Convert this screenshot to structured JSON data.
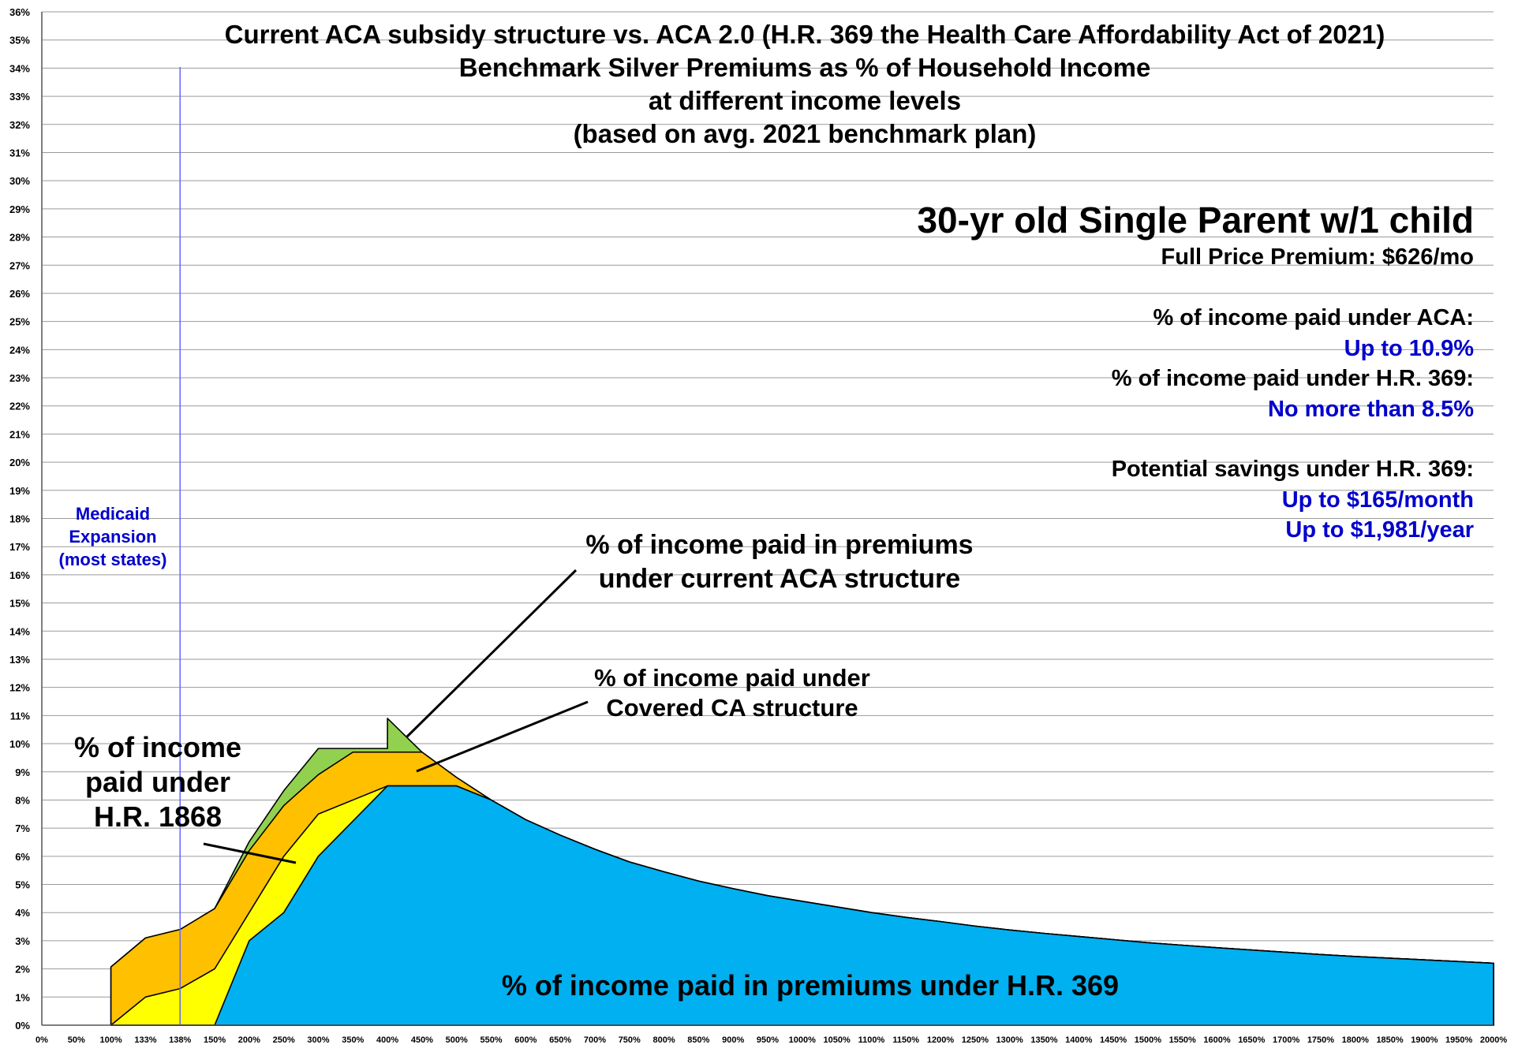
{
  "chart_data": {
    "type": "area",
    "title_lines": [
      "Current ACA subsidy structure vs. ACA 2.0 (H.R. 369 the Health Care Affordability Act of 2021)",
      "Benchmark Silver Premiums as % of Household Income",
      "at different income levels",
      "(based on avg. 2021 benchmark plan)"
    ],
    "y_ticks": [
      "0%",
      "1%",
      "2%",
      "3%",
      "4%",
      "5%",
      "6%",
      "7%",
      "8%",
      "9%",
      "10%",
      "11%",
      "12%",
      "13%",
      "14%",
      "15%",
      "16%",
      "17%",
      "18%",
      "19%",
      "20%",
      "21%",
      "22%",
      "23%",
      "24%",
      "25%",
      "26%",
      "27%",
      "28%",
      "29%",
      "30%",
      "31%",
      "32%",
      "33%",
      "34%",
      "35%",
      "36%"
    ],
    "ylim": [
      0,
      36
    ],
    "x_ticks": [
      "0%",
      "50%",
      "100%",
      "133%",
      "138%",
      "150%",
      "200%",
      "250%",
      "300%",
      "350%",
      "400%",
      "450%",
      "500%",
      "550%",
      "600%",
      "650%",
      "700%",
      "750%",
      "800%",
      "850%",
      "900%",
      "950%",
      "1000%",
      "1050%",
      "1100%",
      "1150%",
      "1200%",
      "1250%",
      "1300%",
      "1350%",
      "1400%",
      "1450%",
      "1500%",
      "1550%",
      "1600%",
      "1650%",
      "1700%",
      "1750%",
      "1800%",
      "1850%",
      "1900%",
      "1950%",
      "2000%"
    ],
    "grid": true,
    "medicaid_line_at": "138%",
    "series": [
      {
        "key": "aca",
        "color": "#92D050",
        "points": [
          [
            "100%",
            2.07
          ],
          [
            "133%",
            3.1
          ],
          [
            "138%",
            3.4
          ],
          [
            "150%",
            4.14
          ],
          [
            "200%",
            6.52
          ],
          [
            "250%",
            8.33
          ],
          [
            "300%",
            9.83
          ],
          [
            "350%",
            9.83
          ],
          [
            "400%",
            9.83
          ],
          [
            "400%",
            10.9
          ],
          [
            "450%",
            9.7
          ],
          [
            "500%",
            8.8
          ],
          [
            "550%",
            8.0
          ],
          [
            "600%",
            7.3
          ],
          [
            "650%",
            6.75
          ],
          [
            "700%",
            6.25
          ],
          [
            "750%",
            5.8
          ],
          [
            "800%",
            5.45
          ],
          [
            "850%",
            5.12
          ],
          [
            "900%",
            4.85
          ],
          [
            "950%",
            4.6
          ],
          [
            "1000%",
            4.4
          ],
          [
            "1050%",
            4.2
          ],
          [
            "1100%",
            4.0
          ],
          [
            "1150%",
            3.83
          ],
          [
            "1200%",
            3.68
          ],
          [
            "1250%",
            3.52
          ],
          [
            "1300%",
            3.38
          ],
          [
            "1350%",
            3.26
          ],
          [
            "1400%",
            3.15
          ],
          [
            "1450%",
            3.04
          ],
          [
            "1500%",
            2.93
          ],
          [
            "1550%",
            2.84
          ],
          [
            "1600%",
            2.75
          ],
          [
            "1650%",
            2.67
          ],
          [
            "1700%",
            2.59
          ],
          [
            "1750%",
            2.51
          ],
          [
            "1800%",
            2.44
          ],
          [
            "1850%",
            2.38
          ],
          [
            "1900%",
            2.32
          ],
          [
            "1950%",
            2.26
          ],
          [
            "2000%",
            2.2
          ]
        ]
      },
      {
        "key": "covered_ca",
        "color": "#FFC000",
        "points": [
          [
            "100%",
            2.07
          ],
          [
            "133%",
            3.1
          ],
          [
            "138%",
            3.4
          ],
          [
            "150%",
            4.14
          ],
          [
            "200%",
            6.2
          ],
          [
            "250%",
            7.8
          ],
          [
            "300%",
            8.9
          ],
          [
            "350%",
            9.7
          ],
          [
            "400%",
            9.7
          ],
          [
            "450%",
            9.7
          ],
          [
            "500%",
            8.8
          ],
          [
            "550%",
            8.0
          ],
          [
            "600%",
            7.3
          ],
          [
            "650%",
            6.75
          ],
          [
            "700%",
            6.25
          ],
          [
            "750%",
            5.8
          ],
          [
            "800%",
            5.45
          ],
          [
            "850%",
            5.12
          ],
          [
            "900%",
            4.85
          ],
          [
            "950%",
            4.6
          ],
          [
            "1000%",
            4.4
          ],
          [
            "1050%",
            4.2
          ],
          [
            "1100%",
            4.0
          ],
          [
            "1150%",
            3.83
          ],
          [
            "1200%",
            3.68
          ],
          [
            "1250%",
            3.52
          ],
          [
            "1300%",
            3.38
          ],
          [
            "1350%",
            3.26
          ],
          [
            "1400%",
            3.15
          ],
          [
            "1450%",
            3.04
          ],
          [
            "1500%",
            2.93
          ],
          [
            "1550%",
            2.84
          ],
          [
            "1600%",
            2.75
          ],
          [
            "1650%",
            2.67
          ],
          [
            "1700%",
            2.59
          ],
          [
            "1750%",
            2.51
          ],
          [
            "1800%",
            2.44
          ],
          [
            "1850%",
            2.38
          ],
          [
            "1900%",
            2.32
          ],
          [
            "1950%",
            2.26
          ],
          [
            "2000%",
            2.2
          ]
        ]
      },
      {
        "key": "hr1868",
        "color": "#FFFF00",
        "points": [
          [
            "100%",
            0
          ],
          [
            "133%",
            1.0
          ],
          [
            "138%",
            1.3
          ],
          [
            "150%",
            2.0
          ],
          [
            "200%",
            4.0
          ],
          [
            "250%",
            6.0
          ],
          [
            "300%",
            7.5
          ],
          [
            "350%",
            8.0
          ],
          [
            "400%",
            8.5
          ],
          [
            "450%",
            8.5
          ],
          [
            "500%",
            8.5
          ],
          [
            "550%",
            8.0
          ],
          [
            "600%",
            7.3
          ],
          [
            "650%",
            6.75
          ],
          [
            "700%",
            6.25
          ],
          [
            "750%",
            5.8
          ],
          [
            "800%",
            5.45
          ],
          [
            "850%",
            5.12
          ],
          [
            "900%",
            4.85
          ],
          [
            "950%",
            4.6
          ],
          [
            "1000%",
            4.4
          ],
          [
            "1050%",
            4.2
          ],
          [
            "1100%",
            4.0
          ],
          [
            "1150%",
            3.83
          ],
          [
            "1200%",
            3.68
          ],
          [
            "1250%",
            3.52
          ],
          [
            "1300%",
            3.38
          ],
          [
            "1350%",
            3.26
          ],
          [
            "1400%",
            3.15
          ],
          [
            "1450%",
            3.04
          ],
          [
            "1500%",
            2.93
          ],
          [
            "1550%",
            2.84
          ],
          [
            "1600%",
            2.75
          ],
          [
            "1650%",
            2.67
          ],
          [
            "1700%",
            2.59
          ],
          [
            "1750%",
            2.51
          ],
          [
            "1800%",
            2.44
          ],
          [
            "1850%",
            2.38
          ],
          [
            "1900%",
            2.32
          ],
          [
            "1950%",
            2.26
          ],
          [
            "2000%",
            2.2
          ]
        ]
      },
      {
        "key": "hr369",
        "color": "#00B0F0",
        "points": [
          [
            "100%",
            0
          ],
          [
            "133%",
            0
          ],
          [
            "138%",
            0
          ],
          [
            "150%",
            0
          ],
          [
            "200%",
            3.0
          ],
          [
            "250%",
            4.0
          ],
          [
            "300%",
            6.0
          ],
          [
            "350%",
            7.25
          ],
          [
            "400%",
            8.5
          ],
          [
            "450%",
            8.5
          ],
          [
            "500%",
            8.5
          ],
          [
            "550%",
            8.0
          ],
          [
            "600%",
            7.3
          ],
          [
            "650%",
            6.75
          ],
          [
            "700%",
            6.25
          ],
          [
            "750%",
            5.8
          ],
          [
            "800%",
            5.45
          ],
          [
            "850%",
            5.12
          ],
          [
            "900%",
            4.85
          ],
          [
            "950%",
            4.6
          ],
          [
            "1000%",
            4.4
          ],
          [
            "1050%",
            4.2
          ],
          [
            "1100%",
            4.0
          ],
          [
            "1150%",
            3.83
          ],
          [
            "1200%",
            3.68
          ],
          [
            "1250%",
            3.52
          ],
          [
            "1300%",
            3.38
          ],
          [
            "1350%",
            3.26
          ],
          [
            "1400%",
            3.15
          ],
          [
            "1450%",
            3.04
          ],
          [
            "1500%",
            2.93
          ],
          [
            "1550%",
            2.84
          ],
          [
            "1600%",
            2.75
          ],
          [
            "1650%",
            2.67
          ],
          [
            "1700%",
            2.59
          ],
          [
            "1750%",
            2.51
          ],
          [
            "1800%",
            2.44
          ],
          [
            "1850%",
            2.38
          ],
          [
            "1900%",
            2.32
          ],
          [
            "1950%",
            2.26
          ],
          [
            "2000%",
            2.2
          ]
        ]
      }
    ],
    "annotations": {
      "medicaid": [
        "Medicaid",
        "Expansion",
        "(most states)"
      ],
      "aca_label": [
        "% of income paid in premiums",
        "under current ACA structure"
      ],
      "covered_ca_label": [
        "% of income paid under",
        "Covered CA structure"
      ],
      "hr1868_label": [
        "% of income",
        "paid under",
        "H.R. 1868"
      ],
      "hr369_label": "% of income paid in premiums under H.R. 369"
    },
    "info_box": {
      "heading": "30-yr old Single Parent w/1 child",
      "full_price": "Full Price Premium: $626/mo",
      "aca_label": "% of income paid under ACA:",
      "aca_value": "Up to 10.9%",
      "hr369_label": "% of income paid under H.R. 369:",
      "hr369_value": "No more than 8.5%",
      "savings_label": "Potential savings under H.R. 369:",
      "savings_month": "Up to $165/month",
      "savings_year": "Up to $1,981/year"
    },
    "text_color": "#000000",
    "accent_blue": "#0000CC",
    "medicaid_line_color": "#6666FF"
  }
}
